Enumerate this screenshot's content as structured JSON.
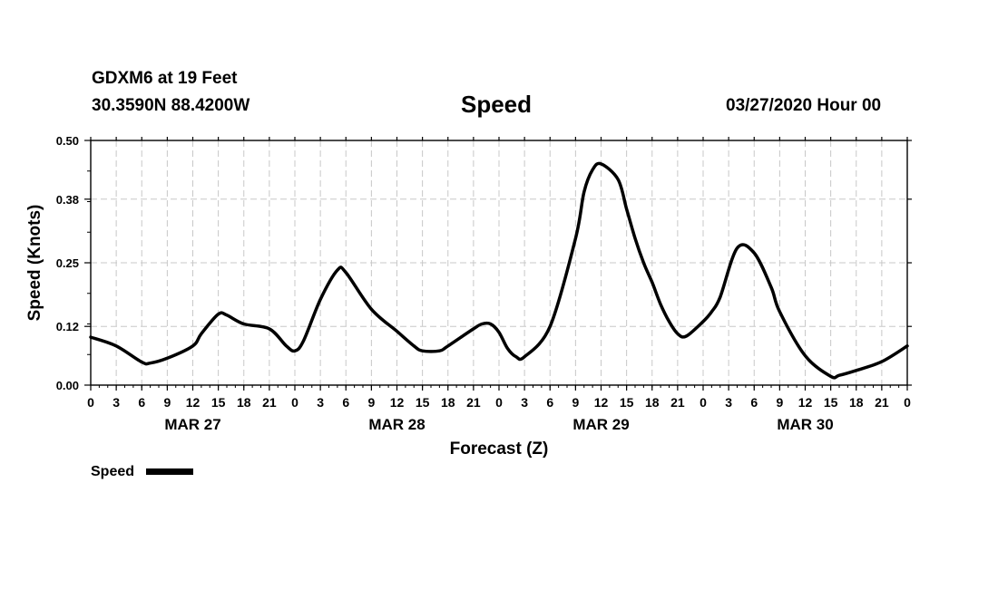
{
  "header": {
    "station": "GDXM6 at 19 Feet",
    "coords": "30.3590N 88.4200W",
    "title": "Speed",
    "runtime": "03/27/2020 Hour 00"
  },
  "chart_data": {
    "type": "line",
    "title": "Speed",
    "xlabel": "Forecast (Z)",
    "ylabel": "Speed (Knots)",
    "xlim": [
      0,
      96
    ],
    "ylim": [
      0,
      0.5
    ],
    "y_ticks": [
      "0.00",
      "0.12",
      "0.25",
      "0.38",
      "0.50"
    ],
    "x_tick_labels": [
      "0",
      "3",
      "6",
      "9",
      "12",
      "15",
      "18",
      "21",
      "0",
      "3",
      "6",
      "9",
      "12",
      "15",
      "18",
      "21",
      "0",
      "3",
      "6",
      "9",
      "12",
      "15",
      "18",
      "21",
      "0",
      "3",
      "6",
      "9",
      "12",
      "15",
      "18",
      "21",
      "0"
    ],
    "day_labels": [
      {
        "label": "MAR 27",
        "hour": 12
      },
      {
        "label": "MAR 28",
        "hour": 36
      },
      {
        "label": "MAR 29",
        "hour": 60
      },
      {
        "label": "MAR 30",
        "hour": 84
      }
    ],
    "grid": true,
    "legend": "bottom-left",
    "series": [
      {
        "name": "Speed",
        "color": "#000000",
        "x": [
          0,
          3,
          6,
          7,
          9,
          12,
          13,
          15,
          16,
          18,
          21,
          23,
          24,
          25,
          27,
          29,
          30,
          33,
          36,
          38,
          39,
          41,
          42,
          45,
          46,
          47,
          48,
          49,
          50,
          51,
          54,
          57,
          58,
          59,
          60,
          62,
          63,
          64,
          65,
          66,
          67,
          68,
          69,
          70,
          72,
          73,
          74,
          76,
          78,
          80,
          81,
          84,
          87,
          88,
          90,
          93,
          96
        ],
        "y": [
          0.098,
          0.08,
          0.047,
          0.045,
          0.055,
          0.08,
          0.105,
          0.145,
          0.143,
          0.125,
          0.115,
          0.08,
          0.07,
          0.09,
          0.175,
          0.235,
          0.23,
          0.155,
          0.11,
          0.08,
          0.07,
          0.07,
          0.08,
          0.115,
          0.125,
          0.125,
          0.108,
          0.075,
          0.058,
          0.058,
          0.12,
          0.3,
          0.395,
          0.44,
          0.452,
          0.42,
          0.36,
          0.3,
          0.25,
          0.21,
          0.165,
          0.13,
          0.105,
          0.1,
          0.13,
          0.15,
          0.18,
          0.28,
          0.27,
          0.2,
          0.15,
          0.06,
          0.018,
          0.02,
          0.03,
          0.048,
          0.08
        ]
      }
    ]
  },
  "legend": {
    "label": "Speed"
  }
}
